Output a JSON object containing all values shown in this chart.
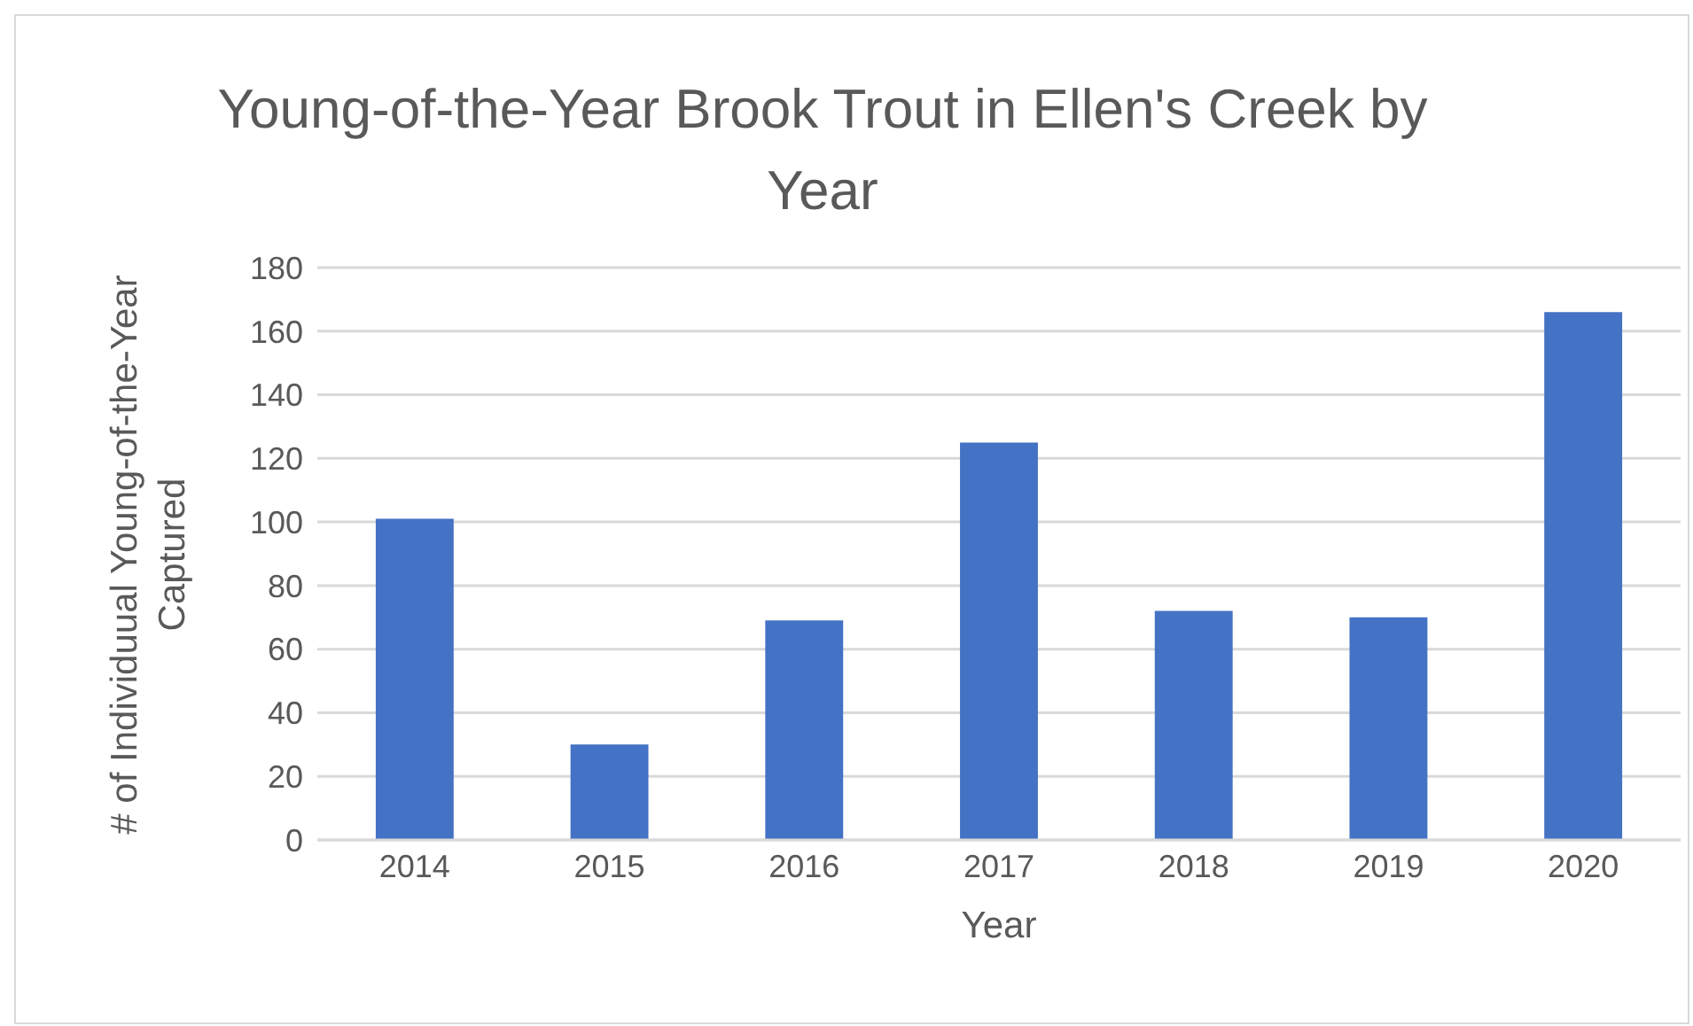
{
  "chart_data": {
    "type": "bar",
    "title": "Young-of-the-Year Brook Trout in Ellen's Creek by Year",
    "xlabel": "Year",
    "ylabel": "# of Individuual Young-of-the-Year Captured",
    "categories": [
      "2014",
      "2015",
      "2016",
      "2017",
      "2018",
      "2019",
      "2020"
    ],
    "series": [
      {
        "color": "#4472c4",
        "values": [
          101,
          30,
          69,
          125,
          72,
          70,
          166
        ]
      }
    ],
    "ylim": [
      0,
      180
    ],
    "yticks": [
      0,
      20,
      40,
      60,
      80,
      100,
      120,
      140,
      160,
      180
    ],
    "grid": "y",
    "legend": false
  }
}
